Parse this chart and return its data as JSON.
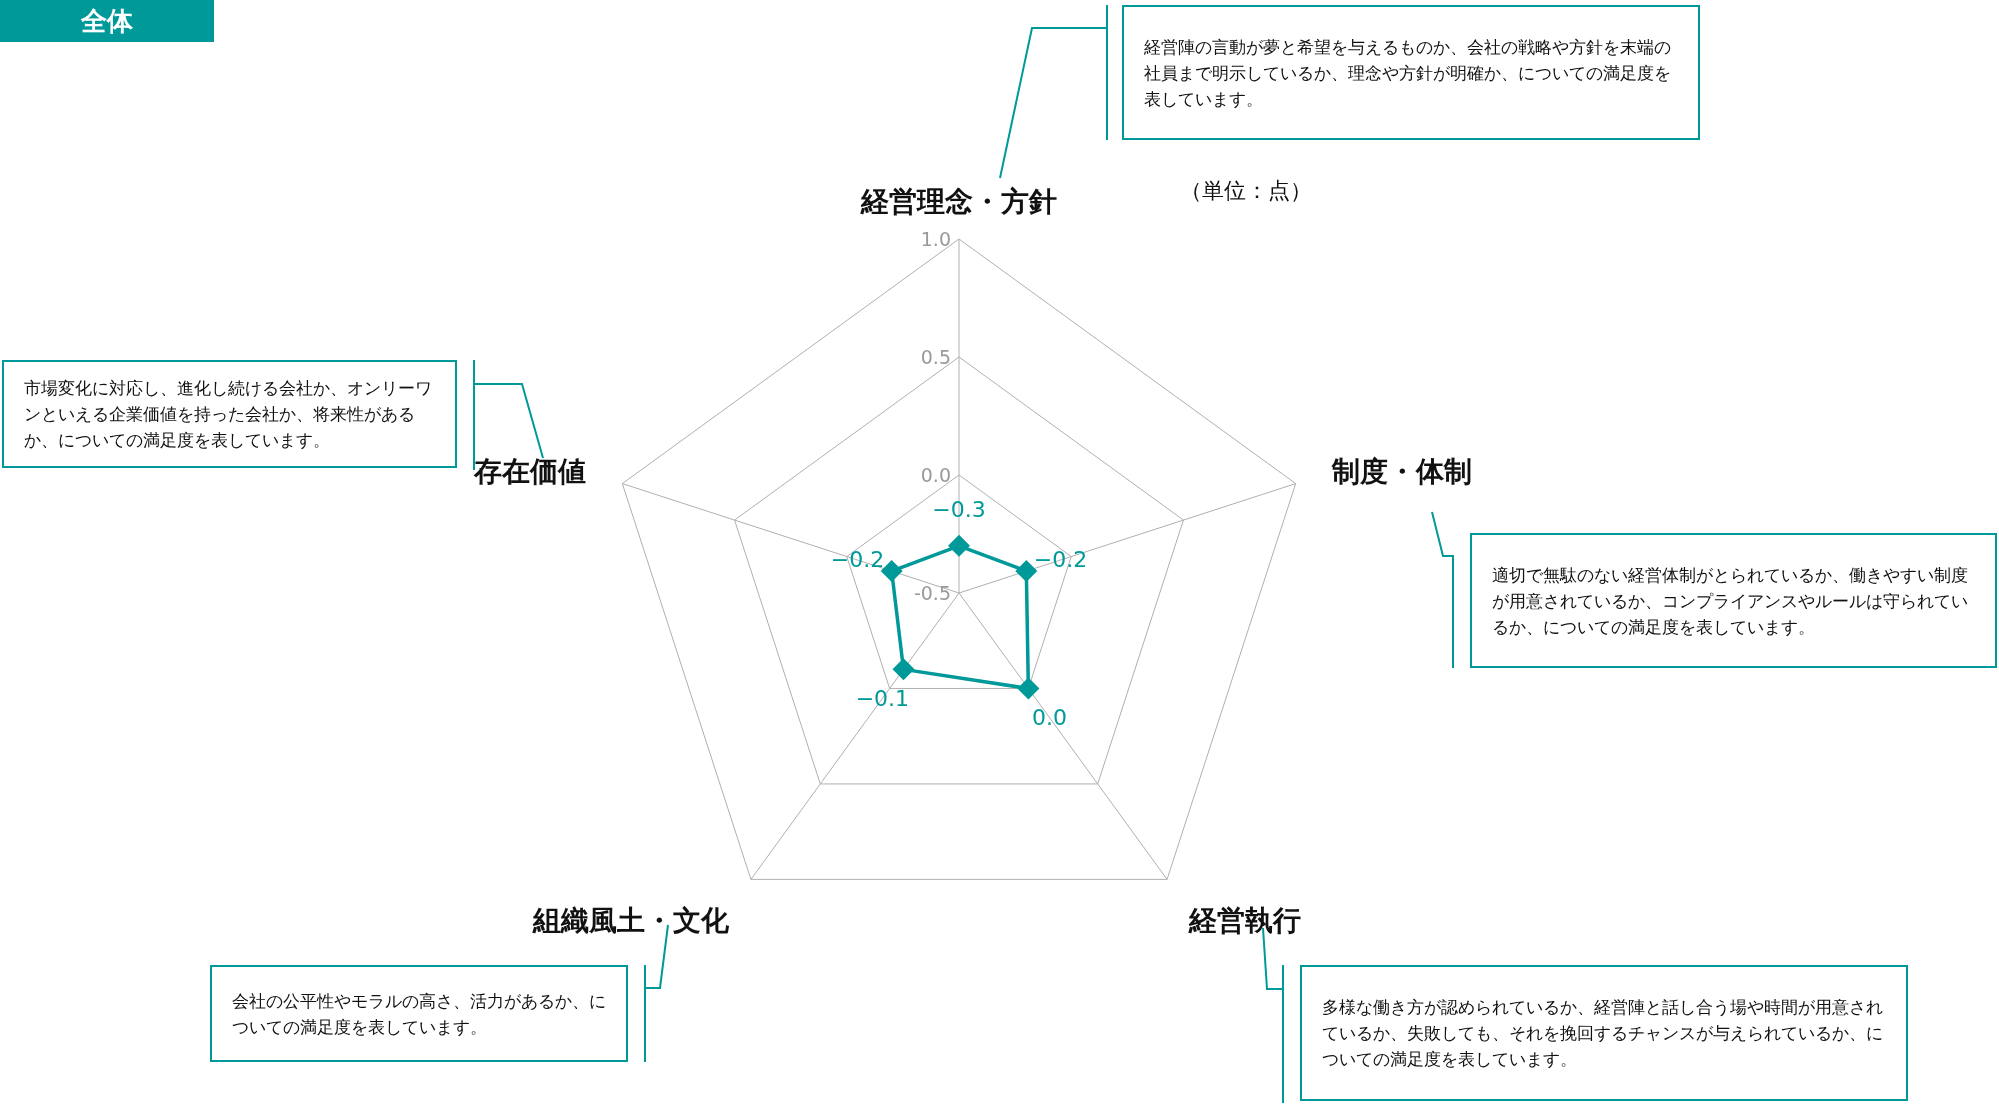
{
  "chart_data": {
    "type": "radar",
    "title": "全体",
    "categories": [
      "経営理念・方針",
      "制度・体制",
      "経営執行",
      "組織風土・文化",
      "存在価値"
    ],
    "series": [
      {
        "color": "#009999",
        "values": [
          -0.3,
          -0.2,
          0.0,
          -0.1,
          -0.2
        ],
        "value_labels": [
          "−0.3",
          "−0.2",
          "0.0",
          "−0.1",
          "−0.2"
        ]
      }
    ],
    "ylim": [
      -0.5,
      1.0
    ],
    "yticks": [
      {
        "value": -0.5,
        "label": "-0.5"
      },
      {
        "value": 0,
        "label": "0.0"
      },
      {
        "value": 0.5,
        "label": "0.5"
      },
      {
        "value": 1,
        "label": "1.0"
      }
    ],
    "grid": true,
    "marker": "diamond",
    "annotations": [
      "（単位：点）",
      "経営陣の言動が夢と希望を与えるものか、会社の戦略や方針を末端の社員まで明示しているか、理念や方針が明確か、についての満足度を表しています。",
      "適切で無駄のない経営体制がとられているか、働きやすい制度が用意されているか、コンプライアンスやルールは守られているか、についての満足度を表しています。",
      "多様な働き方が認められているか、経営陣と話し合う場や時間が用意されているか、失敗しても、それを挽回するチャンスが与えられているか、についての満足度を表しています。",
      "会社の公平性やモラルの高さ、活力があるか、についての満足度を表しています。",
      "市場変化に対応し、進化し続ける会社か、オンリーワンといえる企業価値を持った会社か、将来性があるか、についての満足度を表しています。"
    ]
  }
}
